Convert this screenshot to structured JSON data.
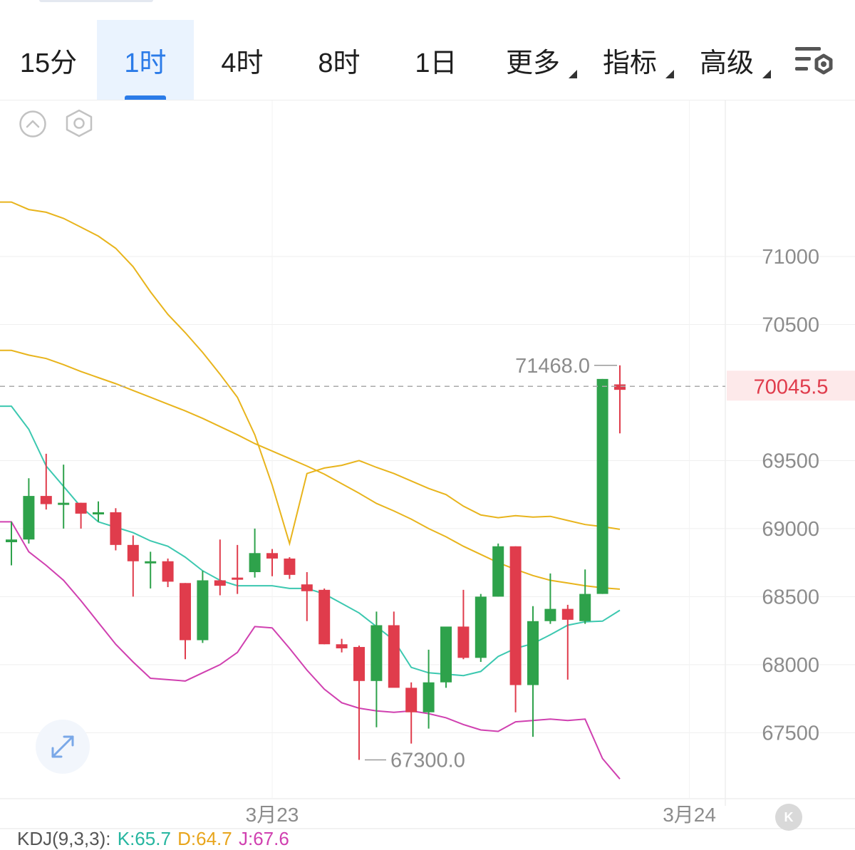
{
  "tabs": [
    {
      "label": "15分",
      "active": false,
      "dropdown": false
    },
    {
      "label": "1时",
      "active": true,
      "dropdown": false
    },
    {
      "label": "4时",
      "active": false,
      "dropdown": false
    },
    {
      "label": "8时",
      "active": false,
      "dropdown": false
    },
    {
      "label": "1日",
      "active": false,
      "dropdown": false
    },
    {
      "label": "更多",
      "active": false,
      "dropdown": true
    },
    {
      "label": "指标",
      "active": false,
      "dropdown": true
    },
    {
      "label": "高级",
      "active": false,
      "dropdown": true
    }
  ],
  "icons": {
    "settings": "chart-settings-icon",
    "collapse": "chevron-up-circle-icon",
    "hexagon": "hexagon-settings-icon",
    "expand": "expand-arrows-icon",
    "k": "K"
  },
  "colors": {
    "up": "#2ea24b",
    "down": "#e03c4c",
    "boll_upper_mid": "#e8b41c",
    "ma_teal": "#3cc8b0",
    "boll_lower": "#d040b0",
    "price_label": "#e03c4c",
    "accent": "#2b7be8"
  },
  "indicator": {
    "name": "KDJ(9,3,3):",
    "k_label": "K:65.7",
    "d_label": "D:64.7",
    "j_label": "J:67.6",
    "k_color": "#26b6a0",
    "d_color": "#e8a51c",
    "j_color": "#d040b0"
  },
  "chart_data": {
    "type": "candlestick",
    "current_price": "70045.5",
    "high_label": "71468.0",
    "low_label": "67300.0",
    "y_ticks": [
      "71000",
      "70500",
      "69500",
      "69000",
      "68500",
      "68000",
      "67500"
    ],
    "ylim": [
      67050,
      71750
    ],
    "x_labels": [
      {
        "label": "3月23",
        "index": 15
      },
      {
        "label": "3月24",
        "index": 39
      }
    ],
    "grid": true,
    "candles": [
      {
        "o": 68900,
        "h": 69050,
        "l": 68730,
        "c": 68920
      },
      {
        "o": 68920,
        "h": 69370,
        "l": 68890,
        "c": 69240
      },
      {
        "o": 69240,
        "h": 69550,
        "l": 69140,
        "c": 69180
      },
      {
        "o": 69180,
        "h": 69470,
        "l": 69000,
        "c": 69190
      },
      {
        "o": 69190,
        "h": 69190,
        "l": 69000,
        "c": 69110
      },
      {
        "o": 69110,
        "h": 69200,
        "l": 69050,
        "c": 69120
      },
      {
        "o": 69120,
        "h": 69150,
        "l": 68840,
        "c": 68880
      },
      {
        "o": 68880,
        "h": 68950,
        "l": 68500,
        "c": 68760
      },
      {
        "o": 68760,
        "h": 68830,
        "l": 68560,
        "c": 68760
      },
      {
        "o": 68760,
        "h": 68780,
        "l": 68570,
        "c": 68610
      },
      {
        "o": 68600,
        "h": 68600,
        "l": 68040,
        "c": 68180
      },
      {
        "o": 68180,
        "h": 68690,
        "l": 68160,
        "c": 68620
      },
      {
        "o": 68620,
        "h": 68920,
        "l": 68510,
        "c": 68580
      },
      {
        "o": 68640,
        "h": 68880,
        "l": 68520,
        "c": 68630
      },
      {
        "o": 68680,
        "h": 69000,
        "l": 68640,
        "c": 68820
      },
      {
        "o": 68820,
        "h": 68850,
        "l": 68650,
        "c": 68780
      },
      {
        "o": 68780,
        "h": 68790,
        "l": 68630,
        "c": 68660
      },
      {
        "o": 68590,
        "h": 68680,
        "l": 68320,
        "c": 68540
      },
      {
        "o": 68550,
        "h": 68560,
        "l": 68150,
        "c": 68150
      },
      {
        "o": 68150,
        "h": 68190,
        "l": 68090,
        "c": 68120
      },
      {
        "o": 68130,
        "h": 68140,
        "l": 67300,
        "c": 67880
      },
      {
        "o": 67880,
        "h": 68390,
        "l": 67540,
        "c": 68290
      },
      {
        "o": 68290,
        "h": 68390,
        "l": 67850,
        "c": 67830
      },
      {
        "o": 67830,
        "h": 67870,
        "l": 67420,
        "c": 67650
      },
      {
        "o": 67650,
        "h": 68110,
        "l": 67530,
        "c": 67870
      },
      {
        "o": 67870,
        "h": 68270,
        "l": 67830,
        "c": 68280
      },
      {
        "o": 68280,
        "h": 68550,
        "l": 68040,
        "c": 68050
      },
      {
        "o": 68050,
        "h": 68520,
        "l": 68020,
        "c": 68500
      },
      {
        "o": 68500,
        "h": 68890,
        "l": 68500,
        "c": 68870
      },
      {
        "o": 68870,
        "h": 68870,
        "l": 67650,
        "c": 67850
      },
      {
        "o": 67850,
        "h": 68430,
        "l": 67470,
        "c": 68320
      },
      {
        "o": 68320,
        "h": 68670,
        "l": 68300,
        "c": 68410
      },
      {
        "o": 68410,
        "h": 68440,
        "l": 67890,
        "c": 68330
      },
      {
        "o": 68320,
        "h": 68700,
        "l": 68300,
        "c": 68520
      },
      {
        "o": 68520,
        "h": 70100,
        "l": 68520,
        "c": 70100
      },
      {
        "o": 70060,
        "h": 70200,
        "l": 69700,
        "c": 70020
      }
    ],
    "series": [
      {
        "values": [
          71400,
          71345,
          71325,
          71280,
          71215,
          71150,
          71060,
          70925,
          70740,
          70575,
          70440,
          70295,
          70135,
          69965,
          69690,
          69320,
          68890,
          69405,
          69445,
          69465,
          69500,
          69450,
          69405,
          69350,
          69295,
          69250,
          69165,
          69100,
          69080,
          69095,
          69085,
          69090,
          69060,
          69030,
          69015,
          68995
        ]
      },
      {
        "values": [
          70310,
          70275,
          70250,
          70205,
          70155,
          70110,
          70065,
          70015,
          69965,
          69915,
          69865,
          69810,
          69750,
          69690,
          69625,
          69570,
          69515,
          69460,
          69400,
          69330,
          69260,
          69185,
          69130,
          69070,
          69000,
          68940,
          68870,
          68810,
          68750,
          68700,
          68655,
          68620,
          68600,
          68580,
          68565,
          68555
        ]
      },
      {
        "values": [
          69900,
          69730,
          69460,
          69310,
          69160,
          69050,
          69010,
          68970,
          68910,
          68870,
          68790,
          68690,
          68620,
          68580,
          68580,
          68580,
          68560,
          68560,
          68520,
          68450,
          68380,
          68280,
          68180,
          67980,
          67940,
          67930,
          67920,
          67950,
          68060,
          68120,
          68155,
          68220,
          68290,
          68315,
          68320,
          68400
        ]
      },
      {
        "values": [
          69050,
          68830,
          68730,
          68620,
          68470,
          68310,
          68150,
          68020,
          67900,
          67890,
          67880,
          67940,
          68000,
          68090,
          68280,
          68270,
          68120,
          67960,
          67820,
          67720,
          67680,
          67660,
          67650,
          67660,
          67640,
          67610,
          67560,
          67520,
          67510,
          67580,
          67590,
          67600,
          67590,
          67600,
          67310,
          67160
        ]
      }
    ],
    "series_colors": [
      "#e8b41c",
      "#e8b41c",
      "#3cc8b0",
      "#d040b0"
    ]
  }
}
